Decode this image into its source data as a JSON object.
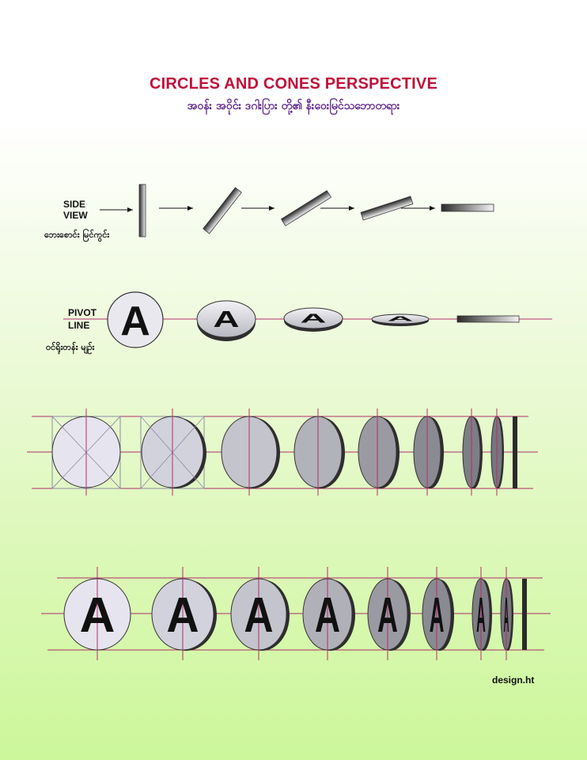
{
  "title": "CIRCLES AND CONES PERSPECTIVE",
  "subtitle": "အဝန်း အဝိုင်း ဒဂါးပြား တို့၏ နီးဝေးမြင်သဘောတရား",
  "side_view": {
    "label_line1": "SIDE",
    "label_line2": "VIEW",
    "label_my": "ဘေးစောင်း မြင်ကွင်း"
  },
  "pivot_line": {
    "label_line1": "PIVOT",
    "label_line2": "LINE",
    "label_my": "ဝင်ရိုးတန်း မျဉ်း"
  },
  "letter": "A",
  "credit": "design.ht",
  "colors": {
    "title": "#c0103a",
    "subtitle": "#5a1f8a",
    "guide_line": "#b0306a",
    "grid_line": "#8e8aa8",
    "disc_face_light": "#e4e4ec",
    "disc_edge": "#3a3a3a"
  }
}
